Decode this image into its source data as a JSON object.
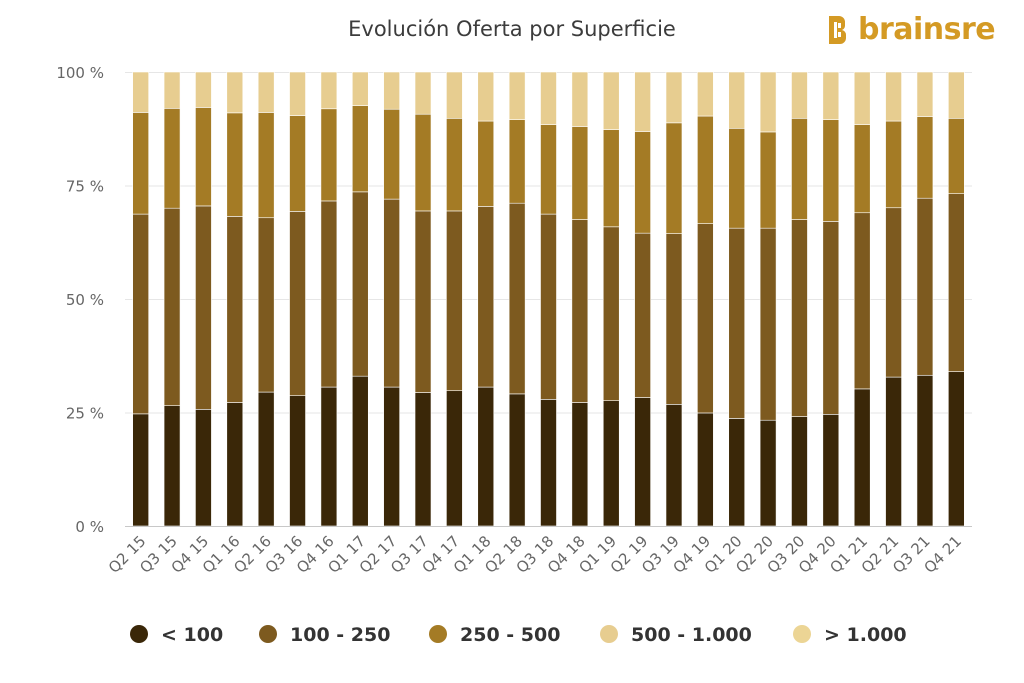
{
  "brand": {
    "name": "brainsre",
    "color": "#d49a24",
    "icon": "brainsre-logo-icon"
  },
  "chart_data": {
    "type": "bar",
    "stacked": "percent",
    "title": "Evolución Oferta por Superficie",
    "xlabel": "",
    "ylabel": "",
    "ylim": [
      0,
      100
    ],
    "yticks": [
      "0 %",
      "25 %",
      "50 %",
      "75 %",
      "100 %"
    ],
    "grid": true,
    "legend_position": "bottom",
    "categories": [
      "Q2 15",
      "Q3 15",
      "Q4 15",
      "Q1 16",
      "Q2 16",
      "Q3 16",
      "Q4 16",
      "Q1 17",
      "Q2 17",
      "Q3 17",
      "Q4 17",
      "Q1 18",
      "Q2 18",
      "Q3 18",
      "Q4 18",
      "Q1 19",
      "Q2 19",
      "Q3 19",
      "Q4 19",
      "Q1 20",
      "Q2 20",
      "Q3 20",
      "Q4 20",
      "Q1 21",
      "Q2 21",
      "Q3 21",
      "Q4 21"
    ],
    "series": [
      {
        "name": "< 100",
        "color": "#3a2708",
        "values": [
          24.7,
          26.5,
          25.7,
          27.2,
          29.5,
          28.7,
          30.6,
          33.0,
          30.6,
          29.4,
          29.8,
          30.6,
          29.1,
          27.9,
          27.2,
          27.6,
          28.3,
          26.8,
          24.9,
          23.7,
          23.3,
          24.1,
          24.6,
          30.2,
          32.8,
          33.2,
          34.0
        ]
      },
      {
        "name": "100 - 250",
        "color": "#7d5a1f",
        "values": [
          44.0,
          43.5,
          44.8,
          41.0,
          38.4,
          40.6,
          41.0,
          40.6,
          41.4,
          40.0,
          39.6,
          39.8,
          42.0,
          40.8,
          40.3,
          38.3,
          36.2,
          37.6,
          41.7,
          41.9,
          42.3,
          43.4,
          42.5,
          38.8,
          37.3,
          39.0,
          39.2
        ]
      },
      {
        "name": "250 - 500",
        "color": "#a47b25",
        "values": [
          22.4,
          22.0,
          21.7,
          22.8,
          23.2,
          21.1,
          20.3,
          19.0,
          19.8,
          21.3,
          20.4,
          18.8,
          18.4,
          19.7,
          20.5,
          21.4,
          22.4,
          24.4,
          23.7,
          22.0,
          21.2,
          22.3,
          22.4,
          19.4,
          19.1,
          18.0,
          16.6
        ]
      },
      {
        "name": "500 - 1.000",
        "color": "#e7cd90",
        "values": [
          8.9,
          8.0,
          7.8,
          9.0,
          8.9,
          9.6,
          8.1,
          7.4,
          8.2,
          9.3,
          10.2,
          10.8,
          10.5,
          11.6,
          12.0,
          12.7,
          13.1,
          11.2,
          9.7,
          12.4,
          13.2,
          10.2,
          10.5,
          11.6,
          10.8,
          9.8,
          10.2
        ]
      },
      {
        "name": "> 1.000",
        "color": "#ecd595",
        "values": [
          0,
          0,
          0,
          0,
          0,
          0,
          0,
          0,
          0,
          0,
          0,
          0,
          0,
          0,
          0,
          0,
          0,
          0,
          0,
          0,
          0,
          0,
          0,
          0,
          0,
          0,
          0
        ]
      }
    ]
  }
}
